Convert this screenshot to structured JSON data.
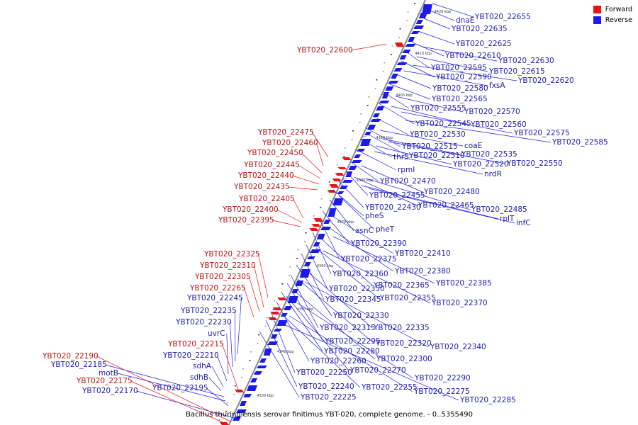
{
  "colors": {
    "forward": "#ee1111",
    "reverse": "#1a1aee",
    "reverse_label": "#1c1ca8",
    "forward_label": "#b81414",
    "backbone": "#888888"
  },
  "legend": {
    "forward": "Forward",
    "reverse": "Reverse"
  },
  "caption": "Bacillus thuringiensis serovar finitimus YBT-020, complete genome. - 0..5355490",
  "ticks": [
    "4420 kbp",
    "4410 kbp",
    "4400 kbp",
    "4390 kbp",
    "4380 kbp",
    "4370 kbp",
    "4360 kbp",
    "4350 kbp",
    "4340 kbp",
    "4330 kbp"
  ],
  "reverse_labels": [
    "YBT020_22655",
    "dnaE",
    "YBT020_22635",
    "YBT020_22625",
    "YBT020_22610",
    "YBT020_22630",
    "YBT020_22595",
    "YBT020_22615",
    "YBT020_22590",
    "YBT020_22620",
    "fxsA",
    "YBT020_22580",
    "YBT020_22565",
    "YBT020_22555",
    "YBT020_22570",
    "YBT020_22545",
    "YBT020_22560",
    "YBT020_22575",
    "YBT020_22530",
    "YBT020_22585",
    "YBT020_22515",
    "coaE",
    "thrS",
    "YBT020_22510",
    "YBT020_22535",
    "YBT020_22520",
    "YBT020_22550",
    "rpmI",
    "nrdR",
    "YBT020_22470",
    "YBT020_22480",
    "YBT020_22455",
    "YBT020_22430",
    "YBT020_22465",
    "YBT020_22485",
    "pheS",
    "rplT",
    "infC",
    "asnC",
    "pheT",
    "YBT020_22390",
    "YBT020_22410",
    "YBT020_22375",
    "YBT020_22380",
    "YBT020_22360",
    "YBT020_22385",
    "YBT020_22365",
    "YBT020_22350",
    "YBT020_22345",
    "YBT020_22355",
    "YBT020_22370",
    "YBT020_22330",
    "YBT020_22315",
    "YBT020_22335",
    "YBT020_22295",
    "YBT020_22320",
    "YBT020_22340",
    "YBT020_22280",
    "YBT020_22300",
    "YBT020_22260",
    "YBT020_22270",
    "YBT020_22250",
    "YBT020_22290",
    "YBT020_22240",
    "YBT020_22255",
    "YBT020_22275",
    "YBT020_22225",
    "YBT020_22285",
    "YBT020_22245",
    "YBT020_22235",
    "YBT020_22230",
    "uvrC",
    "YBT020_22210",
    "sdhA",
    "sdhB",
    "YBT020_22185",
    "motB",
    "YBT020_22195",
    "YBT020_22170"
  ],
  "forward_labels": [
    "YBT020_22600",
    "YBT020_22475",
    "YBT020_22460",
    "YBT020_22450",
    "YBT020_22445",
    "YBT020_22440",
    "YBT020_22435",
    "YBT020_22405",
    "YBT020_22400",
    "YBT020_22395",
    "YBT020_22325",
    "YBT020_22310",
    "YBT020_22305",
    "YBT020_22265",
    "YBT020_22215",
    "YBT020_22190",
    "YBT020_22175"
  ]
}
